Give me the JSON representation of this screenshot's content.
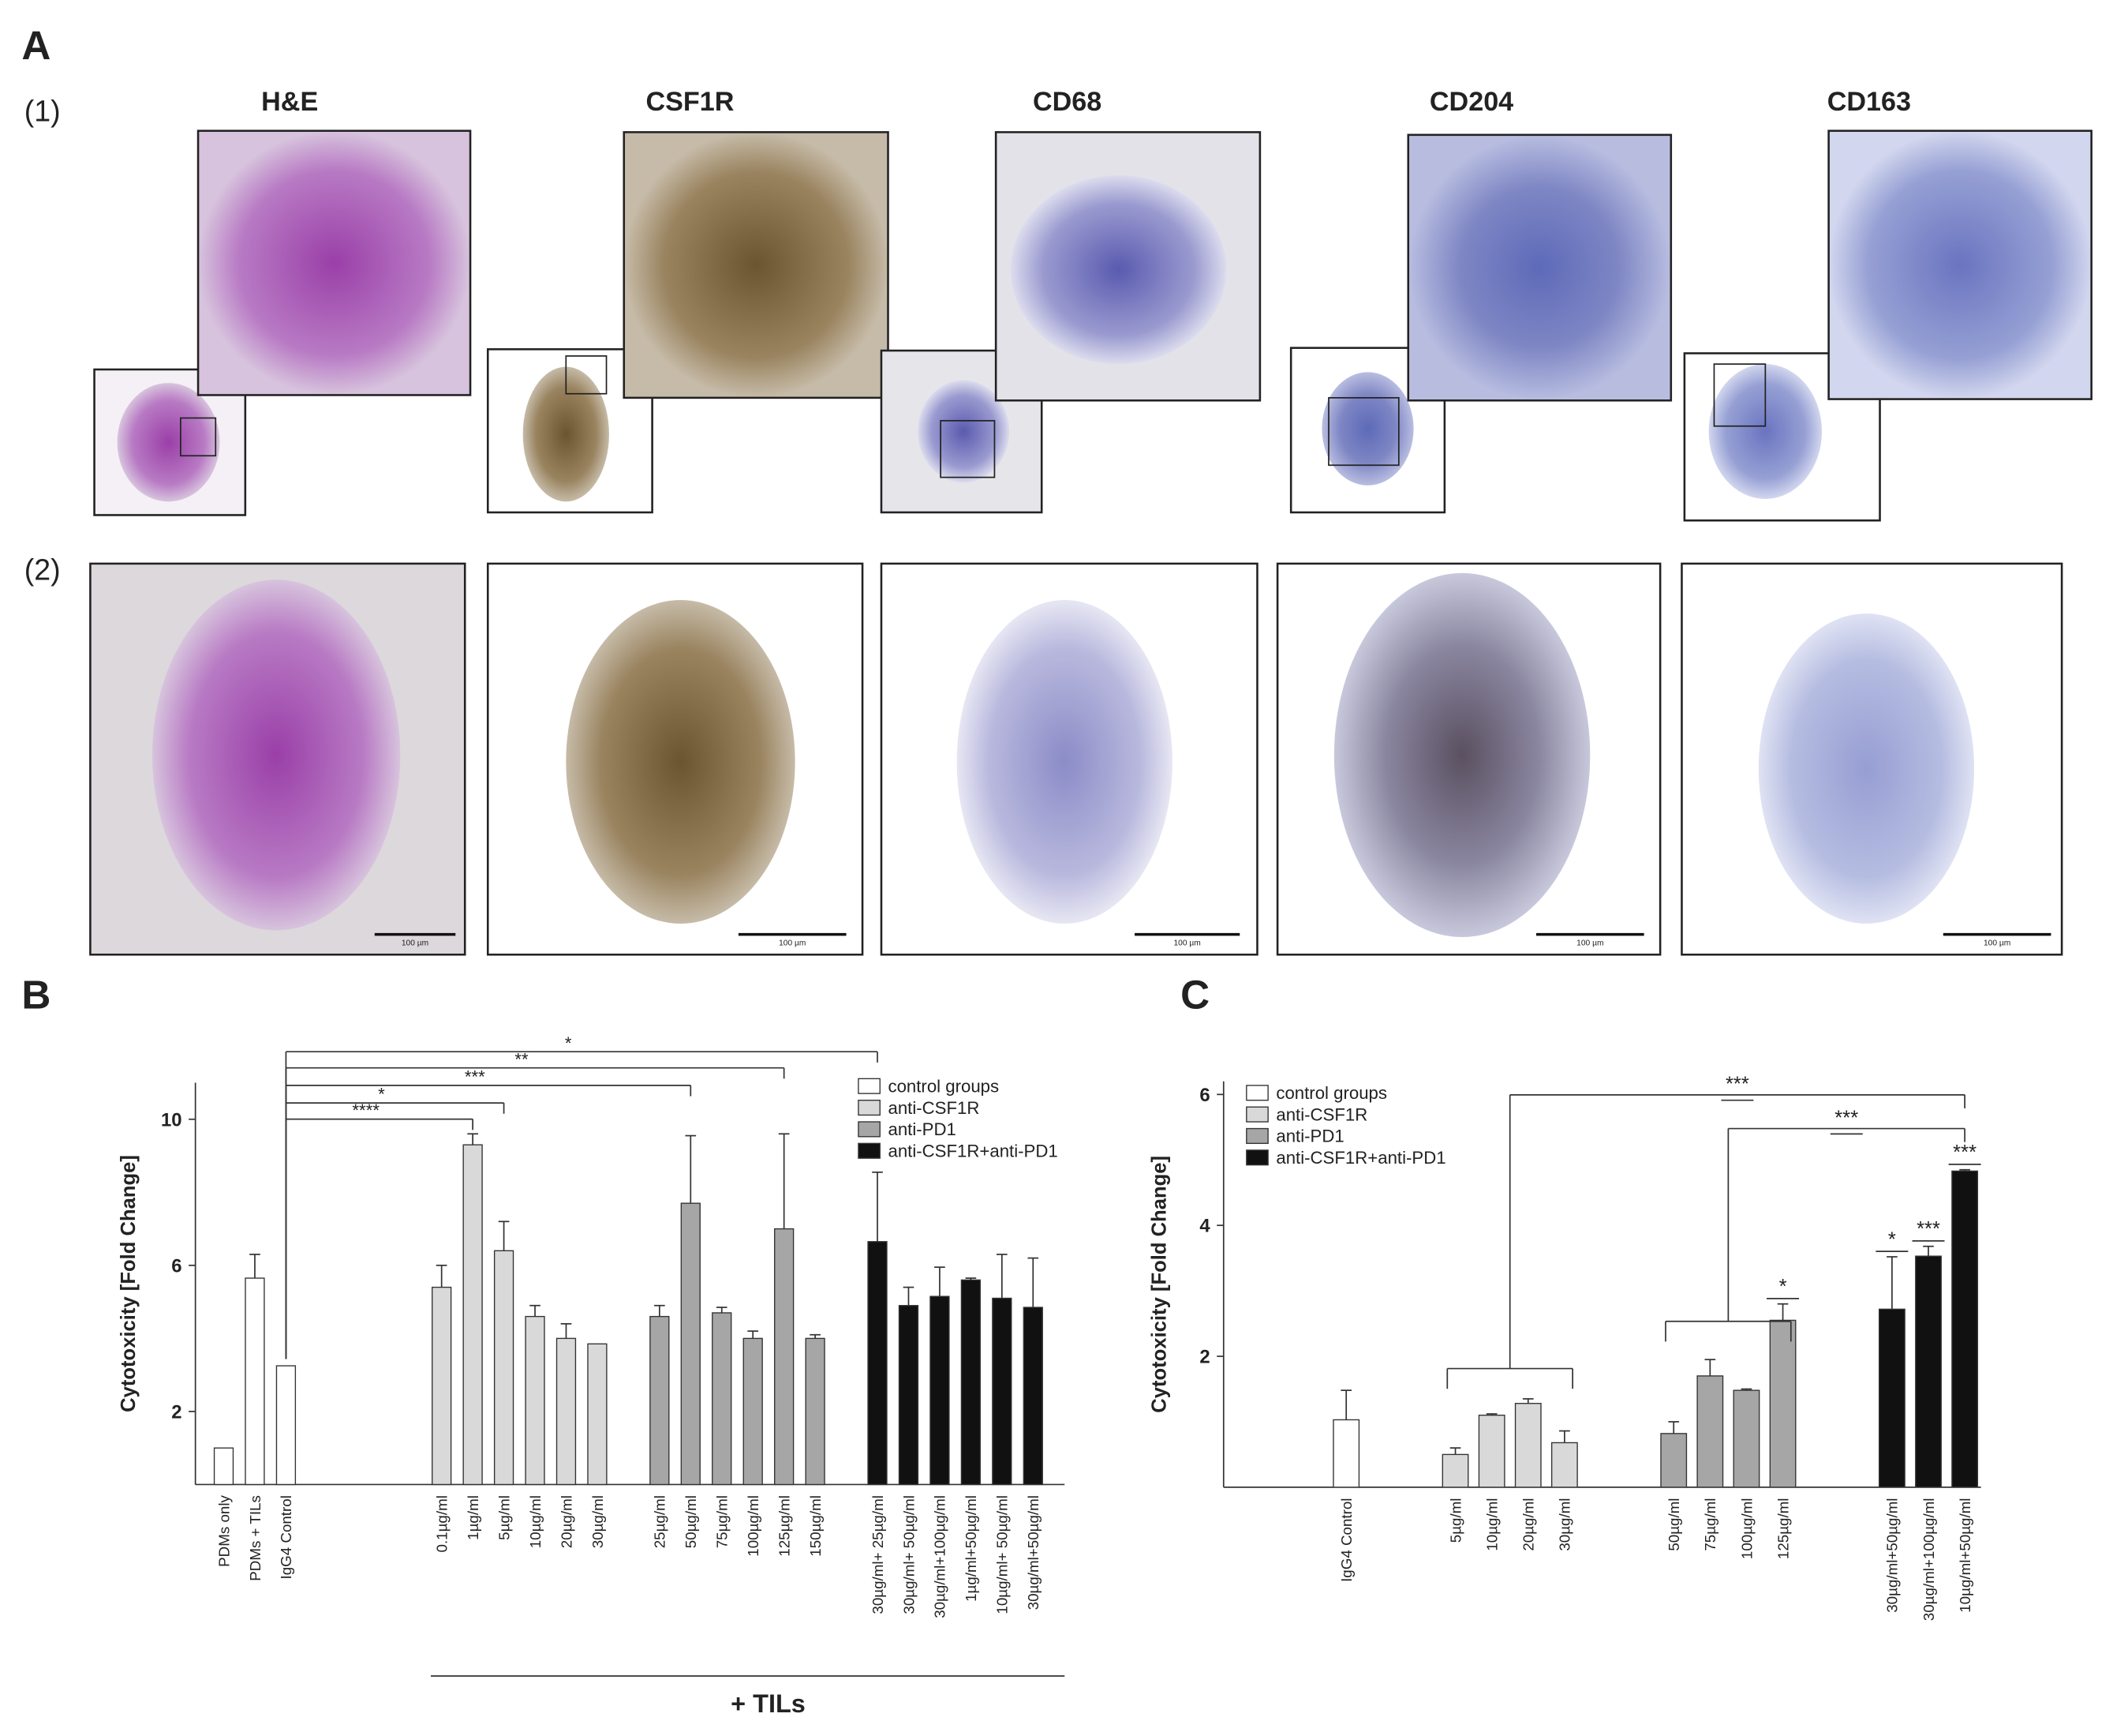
{
  "panel_labels": [
    "A",
    "B",
    "C"
  ],
  "panel_a": {
    "row_labels": [
      "(1)",
      "(2)"
    ],
    "stains": [
      "H&E",
      "CSF1R",
      "CD68",
      "CD204",
      "CD163"
    ],
    "scale_bars": [
      "100 µm",
      "100 µm",
      "100 µm",
      "100 µm",
      "100 µm"
    ]
  },
  "chart_data": [
    {
      "type": "bar",
      "ylabel": "Cytotoxicity [Fold Change]",
      "group_label": "+ TILs",
      "categories": [
        "PDMs only",
        "PDMs + TILs",
        "IgG4 Control",
        null,
        null,
        null,
        null,
        "0.1µg/ml",
        "1µg/ml",
        "5µg/ml",
        "10µg/ml",
        "20µg/ml",
        "30µg/ml",
        null,
        "25µg/ml",
        "50µg/ml",
        "75µg/ml",
        "100µg/ml",
        "125µg/ml",
        "150µg/ml",
        null,
        "30µg/ml+ 25µg/ml",
        "30µg/ml+ 50µg/ml",
        "30µg/ml+100µg/ml",
        "1µg/ml+50µg/ml",
        "10µg/ml+ 50µg/ml",
        "30µg/ml+50µg/ml"
      ],
      "series": [
        {
          "name": "control groups",
          "color": "#ffffff",
          "values": [
            1.0,
            5.65,
            3.25,
            null,
            null,
            null,
            null,
            null,
            null,
            null,
            null,
            null,
            null,
            null,
            null,
            null,
            null,
            null,
            null,
            null,
            null,
            null,
            null,
            null,
            null,
            null,
            null
          ],
          "errors": [
            0,
            0.65,
            0,
            null,
            null,
            null,
            null,
            null,
            null,
            null,
            null,
            null,
            null,
            null,
            null,
            null,
            null,
            null,
            null,
            null,
            null,
            null,
            null,
            null,
            null,
            null,
            null
          ]
        },
        {
          "name": "anti-CSF1R",
          "color": "#d9d9d9",
          "values": [
            null,
            null,
            null,
            null,
            null,
            null,
            null,
            5.4,
            9.3,
            6.4,
            4.6,
            4.0,
            3.85,
            null,
            null,
            null,
            null,
            null,
            null,
            null,
            null,
            null,
            null,
            null,
            null,
            null,
            null
          ],
          "errors": [
            null,
            null,
            null,
            null,
            null,
            null,
            null,
            0.6,
            0.3,
            0.8,
            0.3,
            0.4,
            0,
            null,
            null,
            null,
            null,
            null,
            null,
            null,
            null,
            null,
            null,
            null,
            null,
            null,
            null
          ]
        },
        {
          "name": "anti-PD1",
          "color": "#a6a6a6",
          "values": [
            null,
            null,
            null,
            null,
            null,
            null,
            null,
            null,
            null,
            null,
            null,
            null,
            null,
            null,
            4.6,
            7.7,
            4.7,
            4.0,
            7.0,
            4.0,
            null,
            null,
            null,
            null,
            null,
            null,
            null
          ],
          "errors": [
            null,
            null,
            null,
            null,
            null,
            null,
            null,
            null,
            null,
            null,
            null,
            null,
            null,
            null,
            0.3,
            1.85,
            0.15,
            0.2,
            2.6,
            0.1,
            null,
            null,
            null,
            null,
            null,
            null,
            null
          ]
        },
        {
          "name": "anti-CSF1R+anti-PD1",
          "color": "#111111",
          "values": [
            null,
            null,
            null,
            null,
            null,
            null,
            null,
            null,
            null,
            null,
            null,
            null,
            null,
            null,
            null,
            null,
            null,
            null,
            null,
            null,
            null,
            6.65,
            4.9,
            5.15,
            5.6,
            5.1,
            4.85
          ],
          "errors": [
            null,
            null,
            null,
            null,
            null,
            null,
            null,
            null,
            null,
            null,
            null,
            null,
            null,
            null,
            null,
            null,
            null,
            null,
            null,
            null,
            null,
            1.9,
            0.5,
            0.8,
            0.05,
            1.2,
            1.35
          ]
        }
      ],
      "ylim": [
        0,
        11
      ],
      "yticks": [
        2,
        6,
        10
      ],
      "legend": "upper right",
      "annotations": [
        "*",
        "**",
        "***",
        "*",
        "****"
      ]
    },
    {
      "type": "bar",
      "ylabel": "Cytotoxicity [Fold Change]",
      "categories": [
        "IgG4 Control",
        null,
        null,
        "5µg/ml",
        "10µg/ml",
        "20µg/ml",
        "30µg/ml",
        null,
        null,
        "50µg/ml",
        "75µg/ml",
        "100µg/ml",
        "125µg/ml",
        null,
        null,
        "30µg/ml+50µg/ml",
        "30µg/ml+100µg/ml",
        "10µg/ml+50µg/ml"
      ],
      "series": [
        {
          "name": "control groups",
          "color": "#ffffff",
          "values": [
            1.03,
            null,
            null,
            null,
            null,
            null,
            null,
            null,
            null,
            null,
            null,
            null,
            null,
            null,
            null,
            null,
            null,
            null
          ],
          "errors": [
            0.45,
            null,
            null,
            null,
            null,
            null,
            null,
            null,
            null,
            null,
            null,
            null,
            null,
            null,
            null,
            null,
            null,
            null
          ]
        },
        {
          "name": "anti-CSF1R",
          "color": "#d9d9d9",
          "values": [
            null,
            null,
            null,
            0.5,
            1.1,
            1.28,
            0.68,
            null,
            null,
            null,
            null,
            null,
            null,
            null,
            null,
            null,
            null,
            null
          ],
          "errors": [
            null,
            null,
            null,
            0.1,
            0.02,
            0.07,
            0.18,
            null,
            null,
            null,
            null,
            null,
            null,
            null,
            null,
            null,
            null,
            null
          ]
        },
        {
          "name": "anti-PD1",
          "color": "#a6a6a6",
          "values": [
            null,
            null,
            null,
            null,
            null,
            null,
            null,
            null,
            null,
            0.82,
            1.7,
            1.48,
            2.55,
            null,
            null,
            null,
            null,
            null
          ],
          "errors": [
            null,
            null,
            null,
            null,
            null,
            null,
            null,
            null,
            null,
            0.18,
            0.25,
            0.02,
            0.25,
            null,
            null,
            null,
            null,
            null
          ]
        },
        {
          "name": "anti-CSF1R+anti-PD1",
          "color": "#111111",
          "values": [
            null,
            null,
            null,
            null,
            null,
            null,
            null,
            null,
            null,
            null,
            null,
            null,
            null,
            null,
            null,
            2.72,
            3.53,
            4.83
          ],
          "errors": [
            null,
            null,
            null,
            null,
            null,
            null,
            null,
            null,
            null,
            null,
            null,
            null,
            null,
            null,
            null,
            0.8,
            0.15,
            0.02
          ]
        }
      ],
      "ylim": [
        0,
        6.2
      ],
      "yticks": [
        2,
        4,
        6
      ],
      "legend": "upper left",
      "annotations": [
        "***",
        "***",
        "*",
        "*",
        "***",
        "***"
      ]
    }
  ]
}
